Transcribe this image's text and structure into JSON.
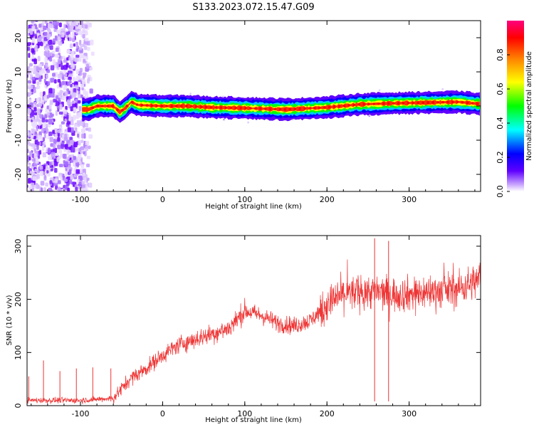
{
  "title": "S133.2023.072.15.47.G09",
  "chart_data": [
    {
      "type": "heatmap",
      "xlabel": "Height of straight line (km)",
      "ylabel": "Frequency (Hz)",
      "xlim": [
        -165,
        387
      ],
      "ylim": [
        -25,
        25
      ],
      "xticks": [
        -100,
        0,
        100,
        200,
        300
      ],
      "yticks": [
        -20,
        -10,
        0,
        10,
        20
      ],
      "colorbar": {
        "label": "Normalized spectral amplitude",
        "range": [
          0,
          1
        ],
        "ticks": [
          0.0,
          0.2,
          0.4,
          0.6,
          0.8
        ],
        "colormap": [
          "#ffffff",
          "#5f00ff",
          "#0000ff",
          "#00ffff",
          "#00ff00",
          "#ffff00",
          "#ff7f00",
          "#ff0000",
          "#ff007f"
        ]
      },
      "ridge": {
        "description_points_x": [
          -98,
          -90,
          -80,
          -70,
          -60,
          -52,
          -45,
          -38,
          -30,
          -20,
          0,
          30,
          60,
          100,
          150,
          200,
          240,
          280,
          320,
          360,
          387
        ],
        "frequency": [
          -1,
          -1,
          0,
          0,
          0,
          -1.8,
          -0.5,
          1.2,
          0.3,
          0.2,
          0,
          0,
          -0.4,
          -0.6,
          -1,
          -0.4,
          0.5,
          0.8,
          1,
          1.2,
          0.6
        ]
      },
      "noise_region_x": [
        -165,
        -85
      ]
    },
    {
      "type": "line",
      "xlabel": "Height of straight line (km)",
      "ylabel": "SNR (10 * v/v)",
      "xlim": [
        -165,
        387
      ],
      "ylim": [
        0,
        320
      ],
      "xticks": [
        -100,
        0,
        100,
        200,
        300
      ],
      "yticks": [
        0,
        100,
        200,
        300
      ],
      "color": "#ee3333",
      "trend": {
        "x": [
          -165,
          -140,
          -100,
          -60,
          -40,
          -20,
          0,
          20,
          40,
          60,
          80,
          100,
          120,
          140,
          160,
          180,
          200,
          220,
          250,
          280,
          300,
          330,
          360,
          387
        ],
        "y": [
          10,
          10,
          10,
          14,
          50,
          70,
          95,
          115,
          125,
          135,
          145,
          178,
          170,
          155,
          150,
          160,
          190,
          210,
          215,
          210,
          210,
          215,
          220,
          238
        ]
      },
      "spikes": [
        {
          "x": -163,
          "y": 55
        },
        {
          "x": -145,
          "y": 85
        },
        {
          "x": -125,
          "y": 65
        },
        {
          "x": -105,
          "y": 70
        },
        {
          "x": -85,
          "y": 72
        },
        {
          "x": -63,
          "y": 70
        },
        {
          "x": 258,
          "y": 315
        },
        {
          "x": 275,
          "y": 310
        }
      ]
    }
  ]
}
